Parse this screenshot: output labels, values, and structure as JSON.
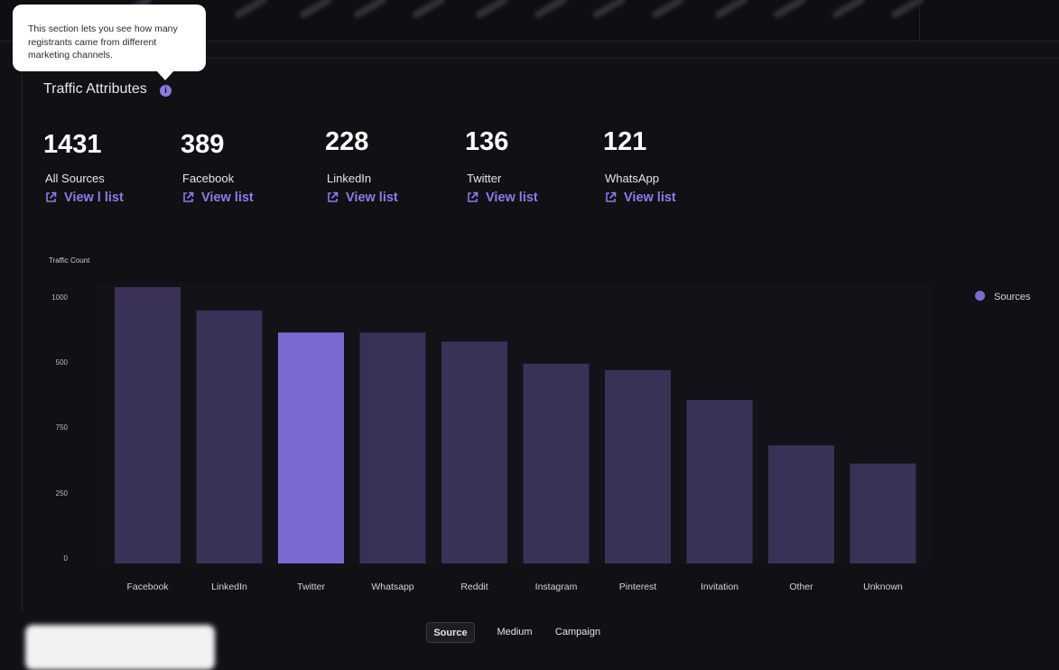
{
  "tooltip": {
    "text": "This section lets you see how many registrants came from different marketing channels."
  },
  "section": {
    "title": "Traffic Attributes",
    "info_icon": "info-icon"
  },
  "stats": [
    {
      "value": "1431",
      "label": "All Sources",
      "link": "View l list"
    },
    {
      "value": "389",
      "label": "Facebook",
      "link": "View list"
    },
    {
      "value": "228",
      "label": "LinkedIn",
      "link": "View list"
    },
    {
      "value": "136",
      "label": "Twitter",
      "link": "View list"
    },
    {
      "value": "121",
      "label": "WhatsApp",
      "link": "View list"
    }
  ],
  "colors": {
    "accent": "#8C7CE8",
    "bar": "#3A3157",
    "bar_highlight": "#7B6BD0",
    "background": "#111015"
  },
  "chart_data": {
    "type": "bar",
    "ylabel": "Traffic Count",
    "ticks": [
      "1000",
      "500",
      "750",
      "250",
      "0"
    ],
    "categories": [
      "Facebook",
      "LinkedIn",
      "Twitter",
      "Whatsapp",
      "Reddit",
      "Instagram",
      "Pinterest",
      "Invitation",
      "Other",
      "Unknown"
    ],
    "series": [
      {
        "name": "Sources",
        "values": [
          1065,
          975,
          890,
          890,
          855,
          770,
          745,
          630,
          455,
          385
        ]
      }
    ],
    "highlighted_index": 2,
    "ylim": [
      0,
      1065
    ],
    "legend_position": "right",
    "grid": false
  },
  "tabs": [
    {
      "label": "Source",
      "active": true
    },
    {
      "label": "Medium",
      "active": false
    },
    {
      "label": "Campaign",
      "active": false
    }
  ]
}
